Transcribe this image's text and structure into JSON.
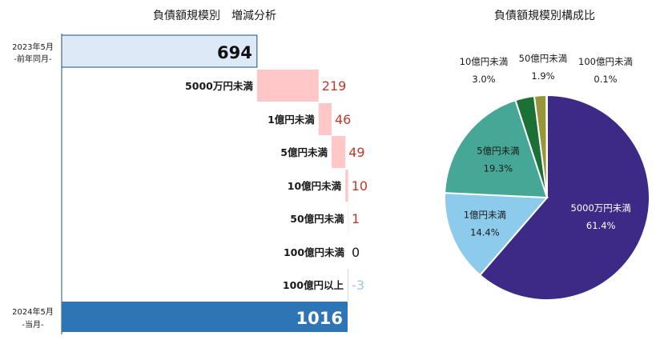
{
  "chart_data": [
    {
      "type": "bar",
      "title": "負債額規模別　増減分析",
      "start": {
        "label_line1": "2023年5月",
        "label_line2": "-前年同月-",
        "value": 694
      },
      "end": {
        "label_line1": "2024年5月",
        "label_line2": "-当月-",
        "value": 1016
      },
      "steps": [
        {
          "category": "5000万円未満",
          "value": 219
        },
        {
          "category": "1億円未満",
          "value": 46
        },
        {
          "category": "5億円未満",
          "value": 49
        },
        {
          "category": "10億円未満",
          "value": 10
        },
        {
          "category": "50億円未満",
          "value": 1
        },
        {
          "category": "100億円未満",
          "value": 0
        },
        {
          "category": "100億円以上",
          "value": -3
        }
      ],
      "colors": {
        "start_fill": "#dde9f6",
        "start_stroke": "#1f4e79",
        "end_fill": "#2e75b6",
        "increase_fill": "#ffc7c7",
        "increase_text": "#c0392b",
        "decrease_fill": "#c5d9ee",
        "decrease_text": "#9dc3e6",
        "zero_text": "#1a1a1a"
      }
    },
    {
      "type": "pie",
      "title": "負債額規模別構成比",
      "slices": [
        {
          "label": "5000万円未満",
          "percent": 61.4,
          "percent_label": "61.4%",
          "color": "#3c2a86"
        },
        {
          "label": "1億円未満",
          "percent": 14.4,
          "percent_label": "14.4%",
          "color": "#8ccbeb"
        },
        {
          "label": "5億円未満",
          "percent": 19.3,
          "percent_label": "19.3%",
          "color": "#46a796"
        },
        {
          "label": "10億円未満",
          "percent": 3.0,
          "percent_label": "3.0%",
          "color": "#1a7035"
        },
        {
          "label": "50億円未満",
          "percent": 1.9,
          "percent_label": "1.9%",
          "color": "#97973a"
        },
        {
          "label": "100億円未満",
          "percent": 0.1,
          "percent_label": "0.1%",
          "color": "#2f2f2f"
        }
      ]
    }
  ]
}
